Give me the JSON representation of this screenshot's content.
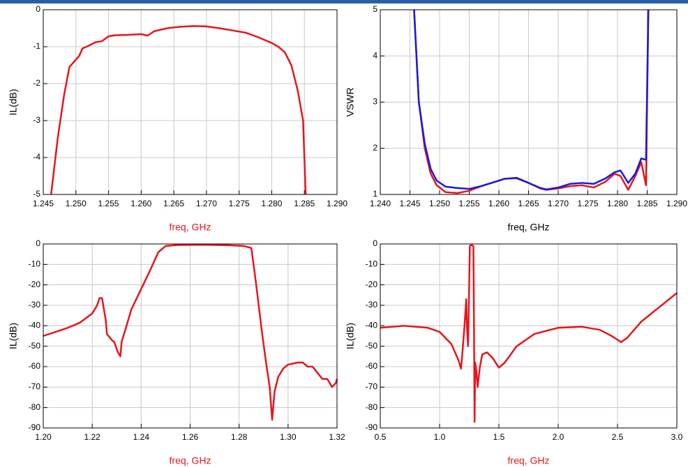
{
  "chart_data": [
    {
      "type": "line",
      "xlabel": "freq, GHz",
      "xlabel_color": "#e8141b",
      "ylabel": "IL(dB)",
      "grid": true,
      "xlim": [
        1.245,
        1.29
      ],
      "ylim": [
        -5,
        0
      ],
      "xticks": [
        1.245,
        {
          "value": 1.25,
          "label": "1.250"
        },
        1.255,
        {
          "value": 1.26,
          "label": "1.260"
        },
        1.265,
        {
          "value": 1.27,
          "label": "1.270"
        },
        1.275,
        {
          "value": 1.28,
          "label": "1.280"
        },
        1.285,
        {
          "value": 1.29,
          "label": "1.290"
        }
      ],
      "yticks": [
        0,
        -1,
        -2,
        -3,
        -4,
        -5
      ],
      "x": [
        1.2462,
        1.2472,
        1.2482,
        1.249,
        1.2505,
        1.251,
        1.252,
        1.253,
        1.254,
        1.255,
        1.256,
        1.258,
        1.26,
        1.261,
        1.262,
        1.264,
        1.266,
        1.268,
        1.27,
        1.272,
        1.274,
        1.276,
        1.278,
        1.28,
        1.281,
        1.282,
        1.283,
        1.284,
        1.2848,
        1.285,
        1.2852
      ],
      "series": [
        {
          "color": "#e8141b",
          "values": [
            -5,
            -3.5,
            -2.3,
            -1.55,
            -1.25,
            -1.05,
            -0.97,
            -0.88,
            -0.85,
            -0.72,
            -0.69,
            -0.68,
            -0.66,
            -0.7,
            -0.58,
            -0.5,
            -0.46,
            -0.44,
            -0.45,
            -0.5,
            -0.56,
            -0.62,
            -0.75,
            -0.9,
            -1.0,
            -1.15,
            -1.5,
            -2.2,
            -3.0,
            -4.0,
            -5
          ]
        }
      ]
    },
    {
      "type": "line",
      "xlabel": "freq, GHz",
      "xlabel_color": "#000000",
      "ylabel": "VSWR",
      "grid": true,
      "xlim": [
        1.24,
        1.29
      ],
      "ylim": [
        1,
        5
      ],
      "xticks": [
        {
          "value": 1.24,
          "label": "1.240"
        },
        1.245,
        {
          "value": 1.25,
          "label": "1.250"
        },
        1.255,
        {
          "value": 1.26,
          "label": "1.260"
        },
        1.265,
        {
          "value": 1.27,
          "label": "1.270"
        },
        1.275,
        {
          "value": 1.28,
          "label": "1.280"
        },
        1.285,
        {
          "value": 1.29,
          "label": "1.290"
        }
      ],
      "yticks": [
        1,
        2,
        3,
        4,
        5
      ],
      "x": [
        1.2457,
        1.2465,
        1.2475,
        1.2485,
        1.2495,
        1.251,
        1.253,
        1.255,
        1.257,
        1.259,
        1.261,
        1.263,
        1.265,
        1.267,
        1.268,
        1.27,
        1.272,
        1.274,
        1.276,
        1.278,
        1.2795,
        1.2805,
        1.2818,
        1.283,
        1.284,
        1.2848,
        1.2852
      ],
      "series": [
        {
          "color": "#e8141b",
          "values": [
            5,
            3.0,
            2.0,
            1.45,
            1.2,
            1.05,
            1.03,
            1.08,
            1.18,
            1.26,
            1.34,
            1.35,
            1.25,
            1.13,
            1.1,
            1.13,
            1.18,
            1.2,
            1.15,
            1.28,
            1.45,
            1.4,
            1.1,
            1.4,
            1.7,
            1.2,
            5
          ]
        },
        {
          "color": "#1a1adb",
          "values": [
            5,
            3.0,
            2.1,
            1.55,
            1.3,
            1.17,
            1.14,
            1.12,
            1.18,
            1.26,
            1.34,
            1.36,
            1.25,
            1.14,
            1.11,
            1.15,
            1.23,
            1.25,
            1.23,
            1.35,
            1.48,
            1.52,
            1.25,
            1.45,
            1.78,
            1.75,
            5
          ]
        }
      ]
    },
    {
      "type": "line",
      "xlabel": "freq, GHz",
      "xlabel_color": "#e8141b",
      "ylabel": "IL(dB)",
      "grid": true,
      "xlim": [
        1.2,
        1.32
      ],
      "ylim": [
        -90,
        0
      ],
      "xticks": [
        {
          "value": 1.2,
          "label": "1.20"
        },
        1.22,
        1.24,
        1.26,
        1.28,
        {
          "value": 1.3,
          "label": "1.30"
        },
        1.32
      ],
      "yticks": [
        0,
        -10,
        -20,
        -30,
        -40,
        -50,
        -60,
        -70,
        -80,
        -90
      ],
      "x": [
        1.2,
        1.205,
        1.21,
        1.215,
        1.22,
        1.222,
        1.223,
        1.224,
        1.2255,
        1.226,
        1.228,
        1.229,
        1.2305,
        1.2315,
        1.232,
        1.234,
        1.236,
        1.24,
        1.244,
        1.247,
        1.25,
        1.255,
        1.265,
        1.275,
        1.282,
        1.285,
        1.287,
        1.289,
        1.291,
        1.2925,
        1.2935,
        1.2945,
        1.296,
        1.298,
        1.3,
        1.302,
        1.304,
        1.306,
        1.308,
        1.31,
        1.312,
        1.314,
        1.316,
        1.318,
        1.3195,
        1.32
      ],
      "series": [
        {
          "color": "#e8141b",
          "values": [
            -45,
            -43,
            -41,
            -38.5,
            -34,
            -30,
            -26.5,
            -26.5,
            -37,
            -44,
            -47,
            -48,
            -53,
            -55,
            -48,
            -40,
            -32,
            -22,
            -12,
            -4,
            -1,
            -0.5,
            -0.4,
            -0.6,
            -1,
            -2,
            -20,
            -40,
            -58,
            -70,
            -86,
            -72,
            -65,
            -61,
            -59,
            -58.5,
            -58,
            -58,
            -60,
            -60,
            -63,
            -66,
            -66,
            -70,
            -68,
            -66
          ]
        }
      ]
    },
    {
      "type": "line",
      "xlabel": "freq, GHz",
      "xlabel_color": "#e8141b",
      "ylabel": "IL(dB)",
      "grid": true,
      "xlim": [
        0.5,
        3.0
      ],
      "ylim": [
        -90,
        0
      ],
      "xticks": [
        0.5,
        {
          "value": 1.0,
          "label": "1.0"
        },
        1.5,
        {
          "value": 2.0,
          "label": "2.0"
        },
        2.5,
        {
          "value": 3.0,
          "label": "3.0"
        }
      ],
      "yticks": [
        0,
        -10,
        -20,
        -30,
        -40,
        -50,
        -60,
        -70,
        -80,
        -90
      ],
      "x": [
        0.5,
        0.7,
        0.9,
        1.0,
        1.1,
        1.16,
        1.18,
        1.19,
        1.21,
        1.225,
        1.23,
        1.24,
        1.245,
        1.255,
        1.27,
        1.285,
        1.29,
        1.295,
        1.3,
        1.31,
        1.32,
        1.34,
        1.36,
        1.4,
        1.45,
        1.5,
        1.55,
        1.65,
        1.8,
        2.0,
        2.2,
        2.35,
        2.45,
        2.53,
        2.58,
        2.7,
        2.85,
        3.0
      ],
      "series": [
        {
          "color": "#e8141b",
          "values": [
            -41,
            -40,
            -41,
            -43,
            -49,
            -57,
            -61,
            -55,
            -40,
            -27,
            -40,
            -50,
            -35,
            -1,
            -0.5,
            -1,
            -40,
            -87,
            -58,
            -62,
            -70,
            -60,
            -54,
            -53,
            -56,
            -60.5,
            -58,
            -50,
            -44,
            -41,
            -40.5,
            -42,
            -45,
            -48,
            -46,
            -38,
            -31,
            -24
          ]
        }
      ]
    }
  ]
}
